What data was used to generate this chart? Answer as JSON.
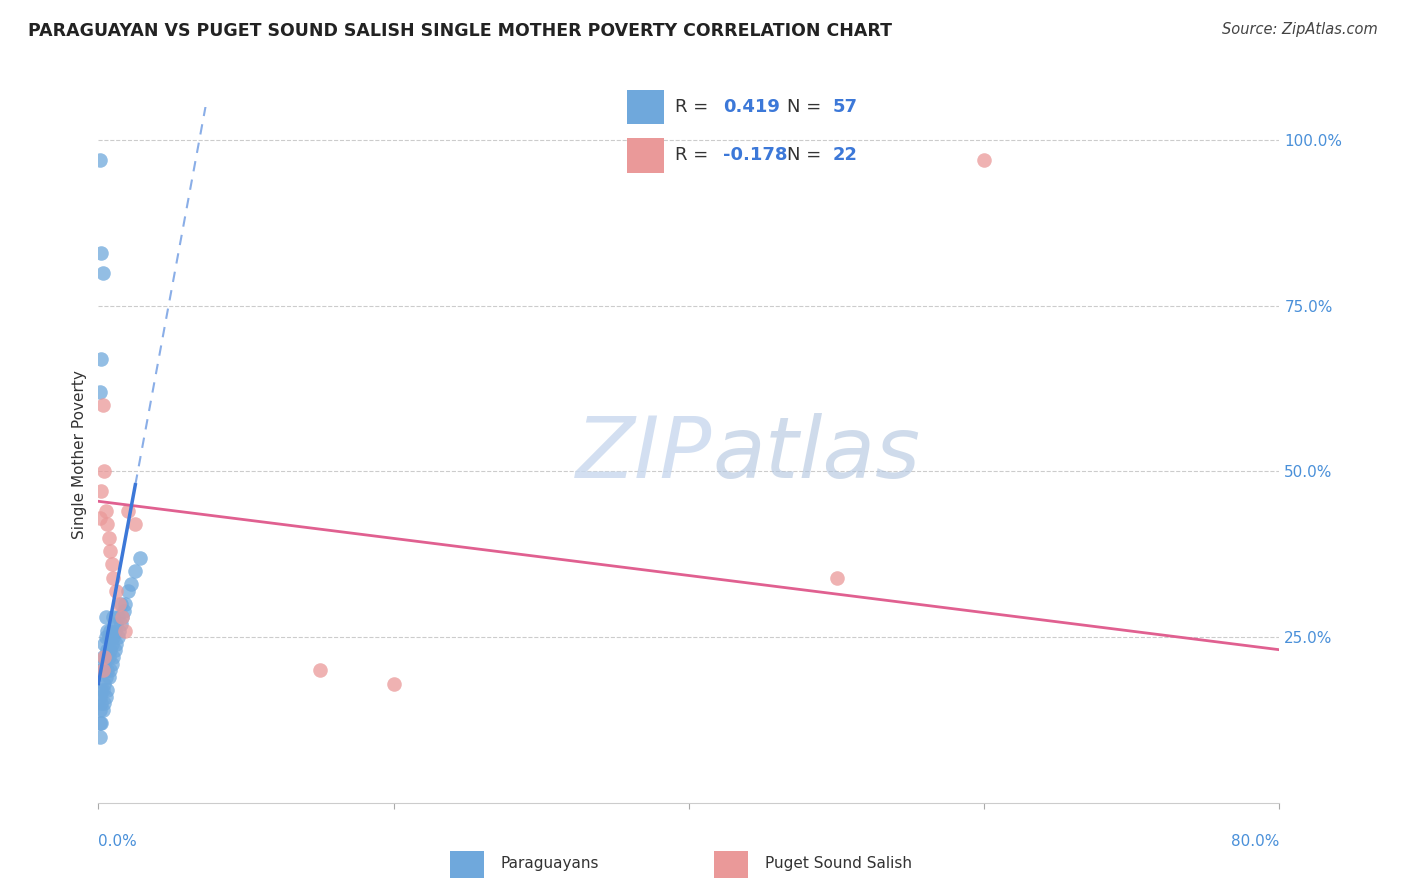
{
  "title": "PARAGUAYAN VS PUGET SOUND SALISH SINGLE MOTHER POVERTY CORRELATION CHART",
  "source": "Source: ZipAtlas.com",
  "ylabel": "Single Mother Poverty",
  "xlim": [
    0.0,
    0.8
  ],
  "ylim": [
    0.0,
    1.05
  ],
  "legend1_R": "0.419",
  "legend1_N": "57",
  "legend2_R": "-0.178",
  "legend2_N": "22",
  "blue_color": "#6fa8dc",
  "pink_color": "#ea9999",
  "trendline_blue": "#3c78d8",
  "trendline_pink": "#e06090",
  "blue_scatter_x": [
    0.001,
    0.001,
    0.001,
    0.001,
    0.002,
    0.002,
    0.002,
    0.002,
    0.003,
    0.003,
    0.003,
    0.003,
    0.004,
    0.004,
    0.004,
    0.004,
    0.005,
    0.005,
    0.005,
    0.005,
    0.005,
    0.006,
    0.006,
    0.006,
    0.006,
    0.007,
    0.007,
    0.007,
    0.008,
    0.008,
    0.008,
    0.009,
    0.009,
    0.01,
    0.01,
    0.01,
    0.011,
    0.011,
    0.012,
    0.012,
    0.013,
    0.013,
    0.014,
    0.015,
    0.015,
    0.016,
    0.017,
    0.018,
    0.02,
    0.022,
    0.025,
    0.028,
    0.001,
    0.002,
    0.003,
    0.002,
    0.001
  ],
  "blue_scatter_y": [
    0.1,
    0.12,
    0.14,
    0.16,
    0.12,
    0.15,
    0.17,
    0.2,
    0.14,
    0.17,
    0.2,
    0.22,
    0.15,
    0.18,
    0.21,
    0.24,
    0.16,
    0.19,
    0.22,
    0.25,
    0.28,
    0.17,
    0.2,
    0.23,
    0.26,
    0.19,
    0.22,
    0.25,
    0.2,
    0.23,
    0.26,
    0.21,
    0.24,
    0.22,
    0.25,
    0.28,
    0.23,
    0.26,
    0.24,
    0.27,
    0.25,
    0.28,
    0.26,
    0.27,
    0.3,
    0.28,
    0.29,
    0.3,
    0.32,
    0.33,
    0.35,
    0.37,
    0.62,
    0.67,
    0.8,
    0.83,
    0.97
  ],
  "pink_scatter_x": [
    0.001,
    0.002,
    0.003,
    0.004,
    0.005,
    0.006,
    0.007,
    0.008,
    0.009,
    0.01,
    0.012,
    0.014,
    0.016,
    0.018,
    0.02,
    0.025,
    0.5,
    0.6,
    0.15,
    0.2,
    0.003,
    0.004
  ],
  "pink_scatter_y": [
    0.43,
    0.47,
    0.6,
    0.5,
    0.44,
    0.42,
    0.4,
    0.38,
    0.36,
    0.34,
    0.32,
    0.3,
    0.28,
    0.26,
    0.44,
    0.42,
    0.34,
    0.97,
    0.2,
    0.18,
    0.2,
    0.22
  ],
  "trendline_blue_x0": 0.0,
  "trendline_blue_x1": 0.025,
  "trendline_blue_slope": 12.0,
  "trendline_blue_intercept": 0.18,
  "trendline_blue_dash_x0": 0.025,
  "trendline_blue_dash_x1": 0.13,
  "trendline_pink_x0": 0.0,
  "trendline_pink_x1": 0.8,
  "trendline_pink_slope": -0.28,
  "trendline_pink_intercept": 0.455
}
